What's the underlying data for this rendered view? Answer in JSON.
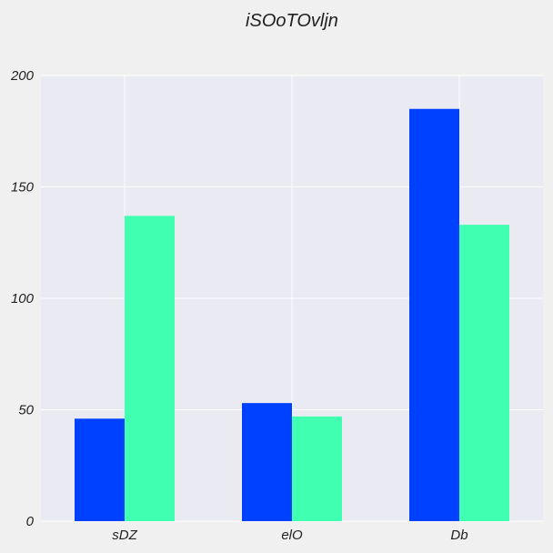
{
  "chart_data": {
    "type": "bar",
    "title": "iSOoTOvljn",
    "xlabel": "",
    "ylabel": "",
    "categories": [
      "sDZ",
      "elO",
      "Db"
    ],
    "series": [
      {
        "values": [
          46,
          53,
          185
        ],
        "color": "#0040ff"
      },
      {
        "values": [
          137,
          47,
          133
        ],
        "color": "#40ffb0"
      }
    ],
    "ylim": [
      0,
      200
    ],
    "yticks": [
      "0",
      "50",
      "100",
      "150",
      "200"
    ],
    "grid": true,
    "legend": "none",
    "plot_background": "#eaeaf2"
  }
}
